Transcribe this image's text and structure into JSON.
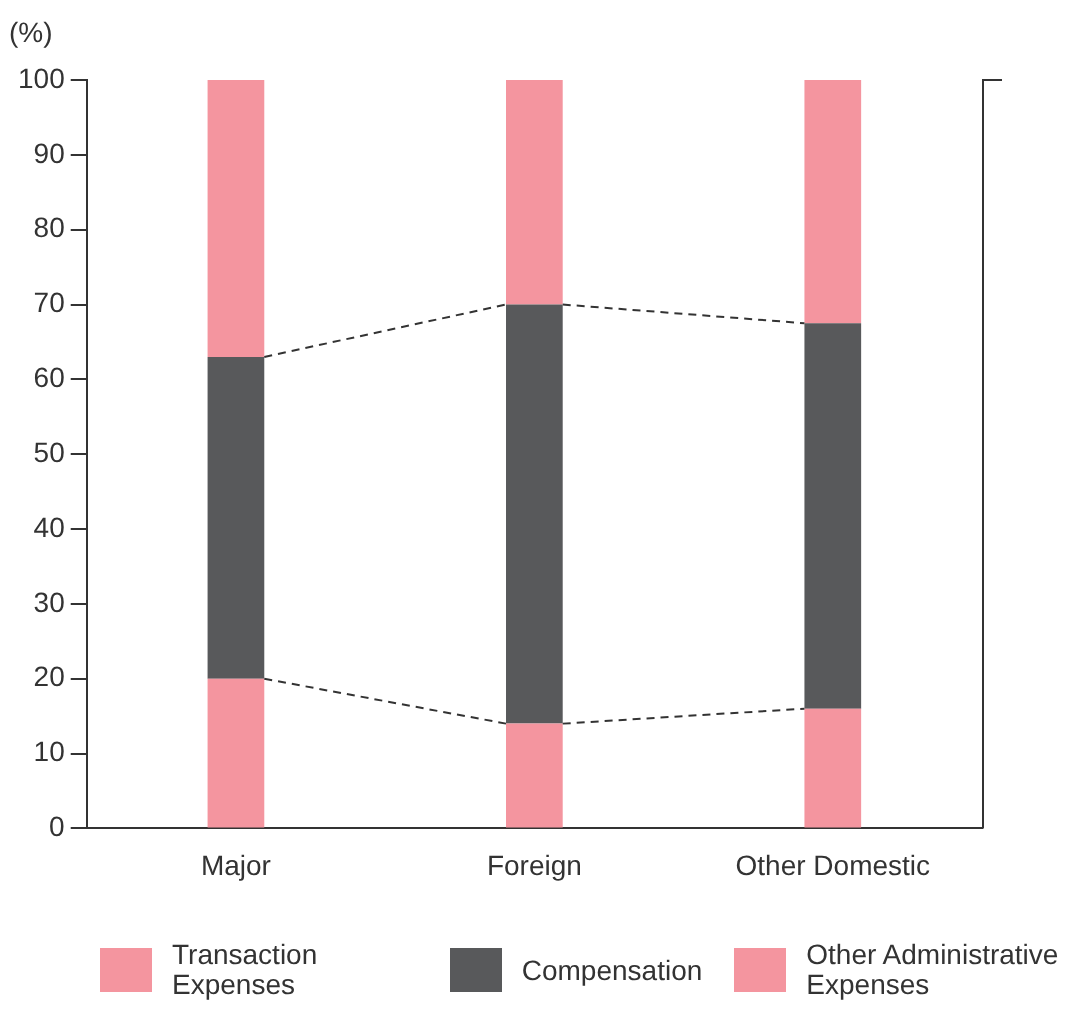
{
  "chart_data": {
    "type": "bar",
    "stacked": true,
    "ylabel": "(%)",
    "categories": [
      "Major",
      "Foreign",
      "Other Domestic"
    ],
    "series": [
      {
        "name": "Transaction Expenses",
        "color": "#f4959f",
        "values": [
          20,
          14,
          16
        ]
      },
      {
        "name": "Compensation",
        "color": "#58595b",
        "values": [
          43,
          56,
          51.5
        ]
      },
      {
        "name": "Other Administrative Expenses",
        "color": "#f4959f",
        "values": [
          37,
          30,
          32.5
        ]
      }
    ],
    "ylim": [
      0,
      100
    ],
    "yticks": [
      0,
      10,
      20,
      30,
      40,
      50,
      60,
      70,
      80,
      90,
      100
    ],
    "grid": false,
    "legend": "bottom"
  }
}
